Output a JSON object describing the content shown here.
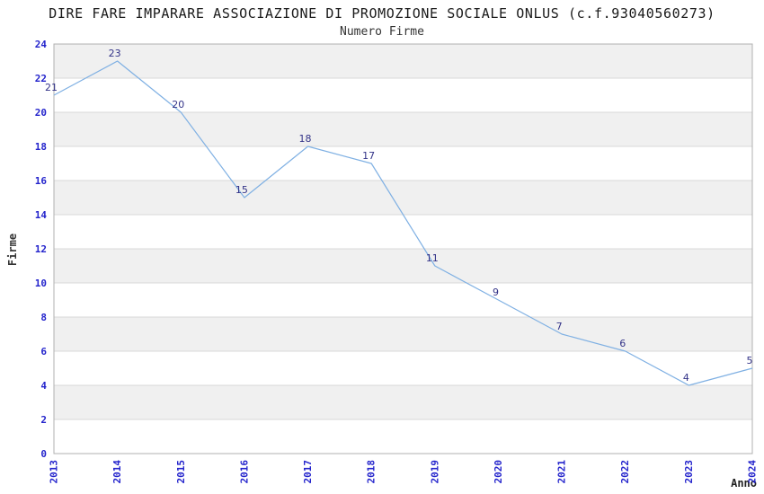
{
  "chart_data": {
    "type": "line",
    "title": "DIRE FARE IMPARARE ASSOCIAZIONE DI PROMOZIONE SOCIALE ONLUS (c.f.93040560273)",
    "subtitle": "Numero Firme",
    "xlabel": "Anno",
    "ylabel": "Firme",
    "categories": [
      "2013",
      "2014",
      "2015",
      "2016",
      "2017",
      "2018",
      "2019",
      "2020",
      "2021",
      "2022",
      "2023",
      "2024"
    ],
    "values": [
      21,
      23,
      20,
      15,
      18,
      17,
      11,
      9,
      7,
      6,
      4,
      5
    ],
    "ylim": [
      0,
      24
    ],
    "ytick_step": 2,
    "grid": "horizontal gridlines with alternating shaded bands",
    "legend": "none",
    "point_labels_shown": true,
    "colors": {
      "line": "#7fb0e3",
      "tick_label": "#2424cc",
      "data_label": "#333388",
      "band_fill": "#f0f0f0",
      "grid_line": "#d9d9d9",
      "plot_border": "#b0b0b0",
      "title_text": "#1a1a1a",
      "axis_title_text": "#333333",
      "background": "#ffffff"
    }
  }
}
